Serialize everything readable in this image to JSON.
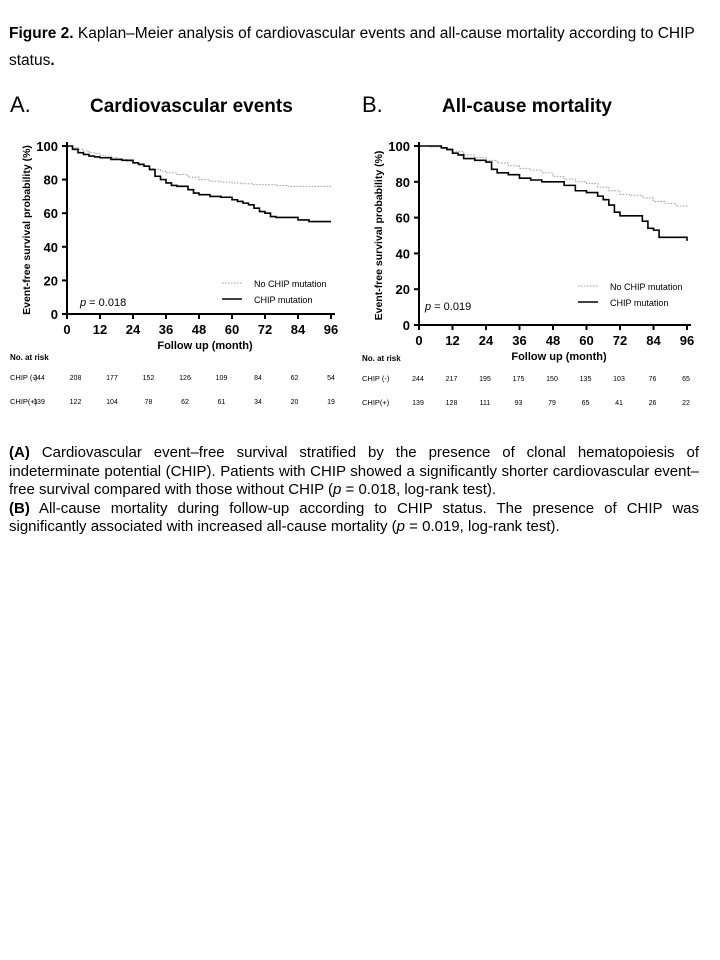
{
  "figure": {
    "label": "Figure 2.",
    "title": "Kaplan–Meier analysis of cardiovascular events and all-cause mortality according to CHIP status",
    "end": "."
  },
  "chart_data": [
    {
      "type": "line",
      "panel_letter": "A.",
      "title": "Cardiovascular events",
      "xlabel": "Follow up (month)",
      "ylabel": "Event-free survival probability (%)",
      "xlim": [
        0,
        96
      ],
      "ylim": [
        0,
        100
      ],
      "xticks": [
        0,
        12,
        24,
        36,
        48,
        60,
        72,
        84,
        96
      ],
      "yticks": [
        0,
        20,
        40,
        60,
        80,
        100
      ],
      "grid": false,
      "legend_position": "bottom-right",
      "p_label": "p",
      "p_value": " = 0.018",
      "series": [
        {
          "name": "No CHIP mutation",
          "style": "dotted",
          "color": "#9a9a9a",
          "x": [
            0,
            2,
            4,
            6,
            8,
            10,
            12,
            14,
            16,
            18,
            20,
            22,
            24,
            26,
            28,
            30,
            32,
            34,
            36,
            40,
            44,
            48,
            52,
            56,
            60,
            64,
            68,
            72,
            76,
            80,
            84,
            88,
            92,
            96
          ],
          "y": [
            100,
            99,
            98,
            97,
            96,
            95.5,
            94.5,
            94,
            93,
            92.5,
            92,
            91,
            90,
            89.5,
            88,
            86.5,
            86,
            85,
            84,
            83,
            81.5,
            80,
            79,
            78.5,
            78,
            77.5,
            77,
            77,
            76.5,
            76,
            76,
            76,
            76,
            76
          ]
        },
        {
          "name": "CHIP mutation",
          "style": "solid",
          "color": "#000000",
          "x": [
            0,
            2,
            4,
            6,
            8,
            10,
            12,
            16,
            20,
            24,
            26,
            28,
            30,
            32,
            34,
            36,
            38,
            40,
            44,
            46,
            48,
            52,
            56,
            60,
            62,
            64,
            66,
            68,
            70,
            72,
            74,
            76,
            80,
            84,
            88,
            96
          ],
          "y": [
            100,
            98,
            96,
            95,
            94,
            93.5,
            93,
            92,
            91.5,
            90,
            89,
            88,
            86,
            82,
            80,
            78,
            76.5,
            76,
            74,
            72,
            71,
            70,
            69.5,
            68,
            67,
            66,
            65,
            63,
            61,
            60,
            58,
            57.5,
            57.5,
            56,
            55,
            55
          ]
        }
      ],
      "risk_table": {
        "title": "No. at risk",
        "rows": [
          {
            "label": "CHIP (-)",
            "values": [
              "244",
              "208",
              "177",
              "152",
              "126",
              "109",
              "84",
              "62",
              "54"
            ]
          },
          {
            "label": "CHIP(+)",
            "values": [
              "139",
              "122",
              "104",
              "78",
              "62",
              "61",
              "34",
              "20",
              "19"
            ]
          }
        ]
      }
    },
    {
      "type": "line",
      "panel_letter": "B.",
      "title": "All-cause mortality",
      "xlabel": "Follow up (month)",
      "ylabel": "Event-free survival probability (%)",
      "xlim": [
        0,
        96
      ],
      "ylim": [
        0,
        100
      ],
      "xticks": [
        0,
        12,
        24,
        36,
        48,
        60,
        72,
        84,
        96
      ],
      "yticks": [
        0,
        20,
        40,
        60,
        80,
        100
      ],
      "grid": false,
      "legend_position": "bottom-right",
      "p_label": "p",
      "p_value": " = 0.019",
      "series": [
        {
          "name": "No CHIP mutation",
          "style": "dotted",
          "color": "#9a9a9a",
          "x": [
            0,
            4,
            8,
            12,
            16,
            20,
            24,
            28,
            32,
            36,
            40,
            44,
            48,
            52,
            56,
            60,
            64,
            68,
            72,
            76,
            80,
            84,
            88,
            92,
            96
          ],
          "y": [
            100,
            99.5,
            98.5,
            97,
            95,
            93.5,
            92,
            90.5,
            89,
            87.5,
            86.5,
            85,
            83,
            81.5,
            80,
            79,
            77,
            75,
            73,
            72.5,
            71,
            69,
            68,
            66.5,
            66
          ]
        },
        {
          "name": "CHIP mutation",
          "style": "solid",
          "color": "#000000",
          "x": [
            0,
            4,
            8,
            10,
            12,
            14,
            16,
            20,
            24,
            26,
            28,
            32,
            36,
            40,
            44,
            48,
            52,
            56,
            60,
            64,
            66,
            68,
            70,
            72,
            76,
            80,
            82,
            84,
            86,
            90,
            95,
            96
          ],
          "y": [
            100,
            100,
            99,
            98,
            96,
            95,
            93,
            92,
            91,
            87,
            85,
            84,
            82,
            81,
            80,
            80,
            78,
            75,
            74,
            72,
            70,
            67,
            63,
            61,
            61,
            58,
            54,
            53,
            49,
            49,
            49,
            47
          ]
        }
      ],
      "risk_table": {
        "title": "No. at risk",
        "rows": [
          {
            "label": "CHIP (-)",
            "values": [
              "244",
              "217",
              "195",
              "175",
              "150",
              "135",
              "103",
              "76",
              "65"
            ]
          },
          {
            "label": "CHIP(+)",
            "values": [
              "139",
              "128",
              "111",
              "93",
              "79",
              "65",
              "41",
              "26",
              "22"
            ]
          }
        ]
      }
    }
  ],
  "caption": {
    "a_label": "(A)",
    "a_text_1": " Cardiovascular event–free survival stratified by the presence of clonal hematopoiesis of indeterminate potential (CHIP). Patients with CHIP showed a significantly shorter cardiovascular event–free survival compared with those without CHIP (",
    "a_p": "p",
    "a_text_2": " = 0.018, log-rank test).",
    "b_label": "(B)",
    "b_text_1": " All-cause mortality during follow-up according to CHIP status. The presence of CHIP was significantly associated with increased all-cause mortality (",
    "b_p": "p",
    "b_text_2": " = 0.019, log-rank test)."
  }
}
